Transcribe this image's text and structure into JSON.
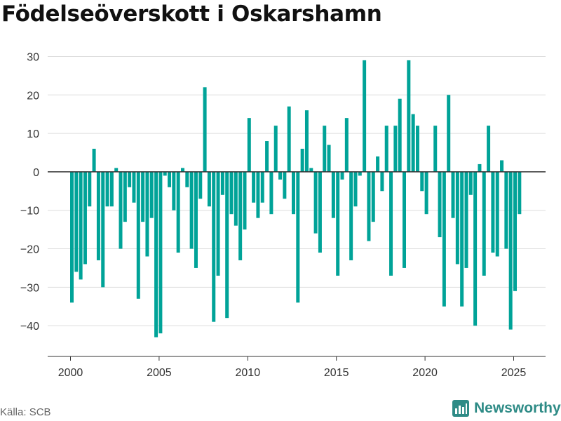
{
  "title": "Födelseöverskott i Oskarshamn",
  "source": "Källa: SCB",
  "brand": {
    "name": "Newsworthy",
    "icon": "newsworthy-logo-icon",
    "color": "#2e8b86"
  },
  "colors": {
    "bar": "#00a398",
    "zero_line": "#333333",
    "grid": "#dddddd"
  },
  "chart_data": {
    "type": "bar",
    "title": "Födelseöverskott i Oskarshamn",
    "xlabel": "",
    "ylabel": "",
    "ylim": [
      -48,
      33
    ],
    "yticks": [
      30,
      20,
      10,
      0,
      -10,
      -20,
      -30,
      -40
    ],
    "xticks": [
      2000,
      2005,
      2010,
      2015,
      2020,
      2025
    ],
    "x_axis": "quarterly, 2000 Q1 – 2025 Q2",
    "grid": true,
    "legend": "none",
    "categories": [
      "2000 Q1",
      "2000 Q2",
      "2000 Q3",
      "2000 Q4",
      "2001 Q1",
      "2001 Q2",
      "2001 Q3",
      "2001 Q4",
      "2002 Q1",
      "2002 Q2",
      "2002 Q3",
      "2002 Q4",
      "2003 Q1",
      "2003 Q2",
      "2003 Q3",
      "2003 Q4",
      "2004 Q1",
      "2004 Q2",
      "2004 Q3",
      "2004 Q4",
      "2005 Q1",
      "2005 Q2",
      "2005 Q3",
      "2005 Q4",
      "2006 Q1",
      "2006 Q2",
      "2006 Q3",
      "2006 Q4",
      "2007 Q1",
      "2007 Q2",
      "2007 Q3",
      "2007 Q4",
      "2008 Q1",
      "2008 Q2",
      "2008 Q3",
      "2008 Q4",
      "2009 Q1",
      "2009 Q2",
      "2009 Q3",
      "2009 Q4",
      "2010 Q1",
      "2010 Q2",
      "2010 Q3",
      "2010 Q4",
      "2011 Q1",
      "2011 Q2",
      "2011 Q3",
      "2011 Q4",
      "2012 Q1",
      "2012 Q2",
      "2012 Q3",
      "2012 Q4",
      "2013 Q1",
      "2013 Q2",
      "2013 Q3",
      "2013 Q4",
      "2014 Q1",
      "2014 Q2",
      "2014 Q3",
      "2014 Q4",
      "2015 Q1",
      "2015 Q2",
      "2015 Q3",
      "2015 Q4",
      "2016 Q1",
      "2016 Q2",
      "2016 Q3",
      "2016 Q4",
      "2017 Q1",
      "2017 Q2",
      "2017 Q3",
      "2017 Q4",
      "2018 Q1",
      "2018 Q2",
      "2018 Q3",
      "2018 Q4",
      "2019 Q1",
      "2019 Q2",
      "2019 Q3",
      "2019 Q4",
      "2020 Q1",
      "2020 Q2",
      "2020 Q3",
      "2020 Q4",
      "2021 Q1",
      "2021 Q2",
      "2021 Q3",
      "2021 Q4",
      "2022 Q1",
      "2022 Q2",
      "2022 Q3",
      "2022 Q4",
      "2023 Q1",
      "2023 Q2",
      "2023 Q3",
      "2023 Q4",
      "2024 Q1",
      "2024 Q2",
      "2024 Q3",
      "2024 Q4",
      "2025 Q1",
      "2025 Q2"
    ],
    "values": [
      -34,
      -26,
      -28,
      -24,
      -9,
      6,
      -23,
      -30,
      -9,
      -9,
      1,
      -20,
      -13,
      -4,
      -8,
      -33,
      -13,
      -22,
      -12,
      -43,
      -42,
      -1,
      -4,
      -10,
      -21,
      1,
      -4,
      -20,
      -25,
      -7,
      22,
      -9,
      -39,
      -27,
      -6,
      -38,
      -11,
      -14,
      -23,
      -15,
      14,
      -8,
      -12,
      -8,
      8,
      -11,
      12,
      -2,
      -7,
      17,
      -11,
      -34,
      6,
      16,
      1,
      -16,
      -21,
      12,
      7,
      -12,
      -27,
      -2,
      14,
      -23,
      -9,
      -1,
      29,
      -18,
      -13,
      4,
      -5,
      12,
      -27,
      12,
      19,
      -25,
      29,
      15,
      12,
      -5,
      -11,
      0,
      12,
      -17,
      -35,
      20,
      -12,
      -24,
      -35,
      -25,
      -6,
      -40,
      2,
      -27,
      12,
      -21,
      -22,
      3,
      -20,
      -41,
      -31,
      -11
    ]
  }
}
